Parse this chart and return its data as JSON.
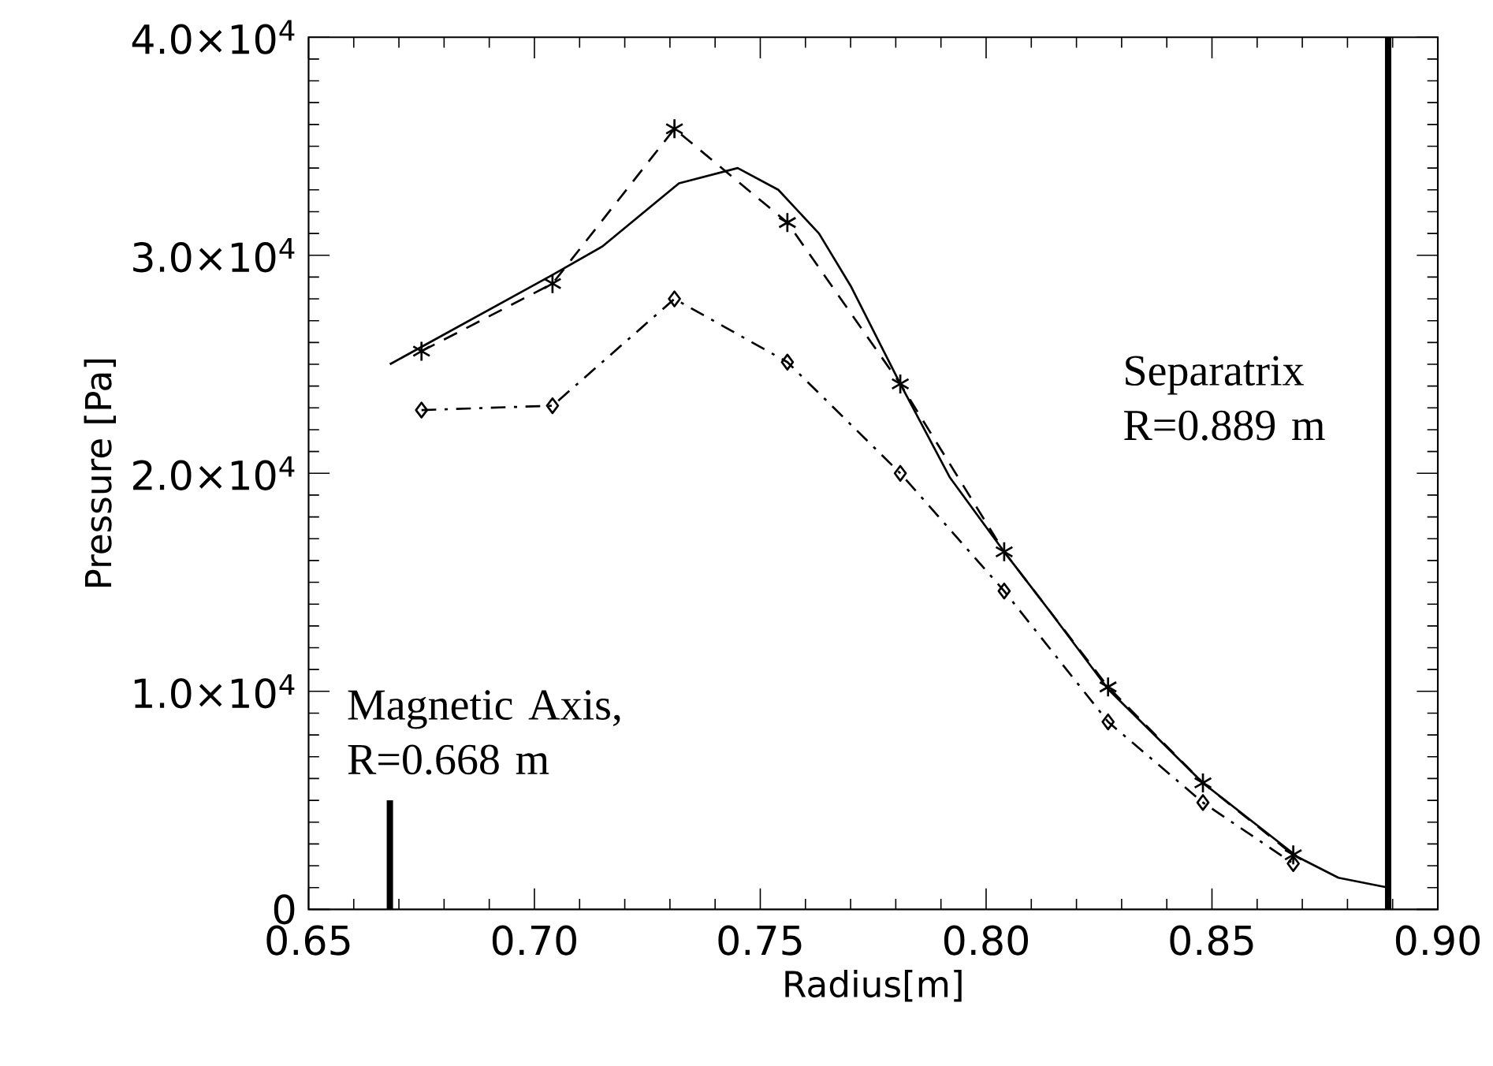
{
  "chart_data": {
    "type": "line",
    "xlabel": "Radius[m]",
    "ylabel": "Pressure [Pa]",
    "xlim": [
      0.65,
      0.9
    ],
    "ylim": [
      0,
      40000
    ],
    "xticks": [
      0.65,
      {
        "value": 0.7,
        "label": "0.70"
      },
      0.75,
      {
        "value": 0.8,
        "label": "0.80"
      },
      0.85,
      {
        "value": 0.9,
        "label": "0.90"
      }
    ],
    "yticks": [
      0,
      {
        "value": 10000,
        "label": "1.0×10$^{4}$"
      },
      {
        "value": 20000,
        "label": "2.0×10$^{4}$"
      },
      {
        "value": 30000,
        "label": "3.0×10$^{4}$"
      },
      {
        "value": 40000,
        "label": "4.0×10$^{4}$"
      }
    ],
    "series": [
      {
        "color": "#000000",
        "line_style": "solid",
        "marker": "none",
        "x": [
          0.668,
          0.704,
          0.715,
          0.732,
          0.745,
          0.754,
          0.763,
          0.77,
          0.781,
          0.792,
          0.804,
          0.814,
          0.827,
          0.848,
          0.869,
          0.878,
          0.889
        ],
        "values": [
          25000,
          29100,
          30400,
          33300,
          34000,
          33000,
          31000,
          28600,
          24100,
          19800,
          16400,
          13700,
          10100,
          5800,
          2400,
          1450,
          1000
        ]
      },
      {
        "color": "#000000",
        "line_style": "dashed",
        "marker": "cross",
        "x": [
          0.675,
          0.704,
          0.731,
          0.756,
          0.781,
          0.804,
          0.827,
          0.848,
          0.868
        ],
        "values": [
          25600,
          28700,
          35800,
          31500,
          24100,
          16400,
          10200,
          5800,
          2500
        ]
      },
      {
        "color": "#000000",
        "line_style": "dashdot",
        "marker": "diamond",
        "x": [
          0.675,
          0.704,
          0.731,
          0.756,
          0.781,
          0.804,
          0.827,
          0.848,
          0.868
        ],
        "values": [
          22900,
          23100,
          28000,
          25100,
          20000,
          14600,
          8600,
          4900,
          2100
        ]
      }
    ],
    "ref_lines": [
      {
        "axis": "x",
        "value": 0.668,
        "label": "Magnetic Axis, R=0.668 m",
        "color": "#000000"
      },
      {
        "axis": "x",
        "value": 0.889,
        "label": "Separatrix R=0.889 m",
        "color": "#000000"
      }
    ]
  }
}
